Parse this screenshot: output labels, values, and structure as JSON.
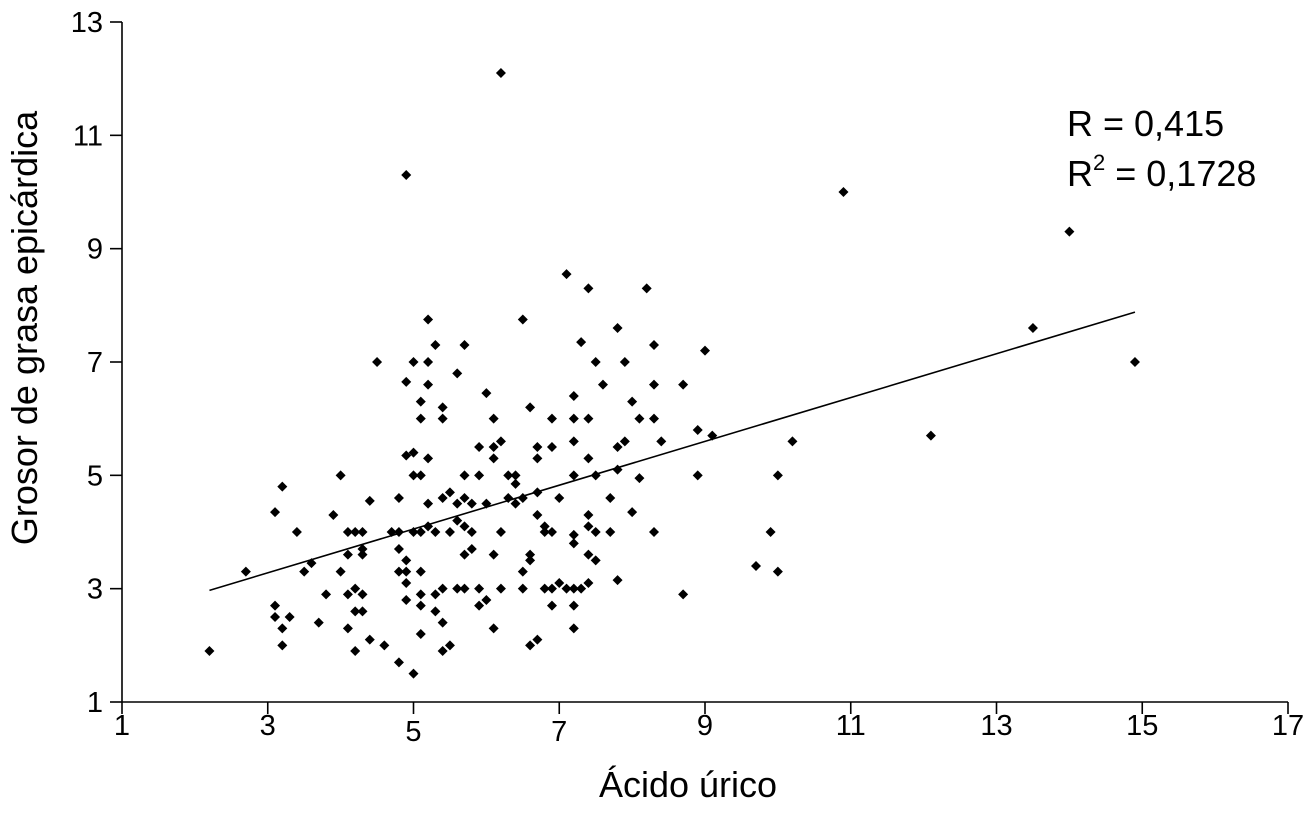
{
  "chart_data": {
    "type": "scatter",
    "title": "",
    "xlabel": "Ácido úrico",
    "ylabel": "Grosor de grasa epicárdica",
    "xlim": [
      1,
      17
    ],
    "ylim": [
      1,
      13
    ],
    "x_ticks": [
      {
        "value": 1,
        "label": "1"
      },
      {
        "value": 3,
        "label": "3"
      },
      {
        "value": 5,
        "label": "5"
      },
      {
        "value": 7,
        "label": "7"
      },
      {
        "value": 9,
        "label": "9"
      },
      {
        "value": 11,
        "label": "11"
      },
      {
        "value": 13,
        "label": "13"
      },
      {
        "value": 15,
        "label": "15"
      },
      {
        "value": 17,
        "label": "17"
      }
    ],
    "y_ticks": [
      {
        "value": 1,
        "label": "1"
      },
      {
        "value": 3,
        "label": "3"
      },
      {
        "value": 5,
        "label": "5"
      },
      {
        "value": 7,
        "label": "7"
      },
      {
        "value": 9,
        "label": "9"
      },
      {
        "value": 11,
        "label": "11"
      },
      {
        "value": 13,
        "label": "13"
      }
    ],
    "grid": false,
    "annotations": {
      "r_text": "R = 0,415",
      "r2_prefix": "R",
      "r2_exponent": "2",
      "r2_suffix": " = 0,1728"
    },
    "trendline": {
      "x": [
        2.2,
        14.9
      ],
      "y": [
        2.97,
        7.88
      ]
    },
    "series": [
      {
        "color": "#000000",
        "points": [
          [
            2.2,
            1.9
          ],
          [
            2.7,
            3.3
          ],
          [
            3.1,
            4.35
          ],
          [
            3.2,
            4.8
          ],
          [
            3.4,
            4.0
          ],
          [
            3.1,
            2.7
          ],
          [
            3.1,
            2.5
          ],
          [
            3.2,
            2.3
          ],
          [
            3.3,
            2.5
          ],
          [
            3.2,
            2.0
          ],
          [
            3.5,
            3.3
          ],
          [
            3.6,
            3.45
          ],
          [
            3.7,
            2.4
          ],
          [
            3.8,
            2.9
          ],
          [
            3.9,
            4.3
          ],
          [
            4.0,
            5.0
          ],
          [
            4.0,
            3.3
          ],
          [
            4.1,
            3.6
          ],
          [
            4.1,
            2.9
          ],
          [
            4.1,
            2.3
          ],
          [
            4.2,
            1.9
          ],
          [
            4.2,
            2.6
          ],
          [
            4.2,
            3.0
          ],
          [
            4.3,
            2.9
          ],
          [
            4.3,
            2.6
          ],
          [
            4.3,
            3.6
          ],
          [
            4.3,
            3.7
          ],
          [
            4.3,
            4.0
          ],
          [
            4.2,
            4.0
          ],
          [
            4.1,
            4.0
          ],
          [
            4.4,
            4.55
          ],
          [
            4.5,
            7.0
          ],
          [
            4.4,
            2.1
          ],
          [
            4.6,
            2.0
          ],
          [
            4.7,
            4.0
          ],
          [
            4.8,
            4.0
          ],
          [
            4.8,
            4.6
          ],
          [
            4.8,
            3.7
          ],
          [
            4.8,
            3.3
          ],
          [
            4.8,
            1.7
          ],
          [
            4.9,
            10.3
          ],
          [
            4.9,
            6.65
          ],
          [
            4.9,
            5.35
          ],
          [
            4.9,
            3.5
          ],
          [
            4.9,
            3.3
          ],
          [
            4.9,
            3.1
          ],
          [
            4.9,
            2.8
          ],
          [
            5.0,
            1.5
          ],
          [
            5.0,
            7.0
          ],
          [
            5.0,
            5.4
          ],
          [
            5.0,
            5.0
          ],
          [
            5.0,
            4.0
          ],
          [
            5.1,
            6.0
          ],
          [
            5.1,
            6.3
          ],
          [
            5.1,
            5.0
          ],
          [
            5.1,
            4.0
          ],
          [
            5.1,
            3.3
          ],
          [
            5.1,
            2.9
          ],
          [
            5.1,
            2.7
          ],
          [
            5.1,
            2.2
          ],
          [
            5.2,
            7.75
          ],
          [
            5.2,
            7.0
          ],
          [
            5.2,
            6.6
          ],
          [
            5.2,
            5.3
          ],
          [
            5.2,
            4.5
          ],
          [
            5.2,
            4.1
          ],
          [
            5.3,
            7.3
          ],
          [
            5.3,
            4.0
          ],
          [
            5.3,
            2.9
          ],
          [
            5.3,
            2.6
          ],
          [
            5.4,
            6.2
          ],
          [
            5.4,
            6.0
          ],
          [
            5.4,
            4.6
          ],
          [
            5.4,
            3.0
          ],
          [
            5.4,
            2.4
          ],
          [
            5.4,
            1.9
          ],
          [
            5.5,
            4.7
          ],
          [
            5.5,
            4.0
          ],
          [
            5.5,
            2.0
          ],
          [
            5.6,
            6.8
          ],
          [
            5.6,
            4.5
          ],
          [
            5.6,
            4.2
          ],
          [
            5.6,
            3.0
          ],
          [
            5.7,
            7.3
          ],
          [
            5.7,
            5.0
          ],
          [
            5.7,
            4.6
          ],
          [
            5.7,
            4.1
          ],
          [
            5.7,
            3.6
          ],
          [
            5.7,
            3.0
          ],
          [
            5.8,
            4.5
          ],
          [
            5.8,
            4.0
          ],
          [
            5.8,
            3.7
          ],
          [
            5.9,
            5.5
          ],
          [
            5.9,
            5.0
          ],
          [
            5.9,
            3.0
          ],
          [
            5.9,
            2.7
          ],
          [
            6.0,
            6.45
          ],
          [
            6.0,
            4.5
          ],
          [
            6.0,
            2.8
          ],
          [
            6.1,
            6.0
          ],
          [
            6.1,
            5.5
          ],
          [
            6.1,
            5.3
          ],
          [
            6.1,
            3.6
          ],
          [
            6.1,
            2.3
          ],
          [
            6.2,
            12.1
          ],
          [
            6.2,
            5.6
          ],
          [
            6.2,
            4.0
          ],
          [
            6.2,
            3.0
          ],
          [
            6.3,
            5.0
          ],
          [
            6.3,
            4.6
          ],
          [
            6.4,
            5.0
          ],
          [
            6.4,
            4.85
          ],
          [
            6.4,
            4.5
          ],
          [
            6.5,
            7.75
          ],
          [
            6.5,
            4.6
          ],
          [
            6.5,
            3.3
          ],
          [
            6.5,
            3.0
          ],
          [
            6.6,
            6.2
          ],
          [
            6.6,
            3.6
          ],
          [
            6.6,
            3.5
          ],
          [
            6.6,
            2.0
          ],
          [
            6.7,
            5.5
          ],
          [
            6.7,
            5.3
          ],
          [
            6.7,
            4.7
          ],
          [
            6.7,
            4.3
          ],
          [
            6.7,
            2.1
          ],
          [
            6.8,
            4.1
          ],
          [
            6.8,
            4.0
          ],
          [
            6.8,
            3.0
          ],
          [
            6.9,
            6.0
          ],
          [
            6.9,
            5.5
          ],
          [
            6.9,
            4.0
          ],
          [
            6.9,
            3.0
          ],
          [
            6.9,
            2.7
          ],
          [
            7.0,
            3.1
          ],
          [
            7.0,
            4.6
          ],
          [
            7.1,
            8.55
          ],
          [
            7.1,
            3.0
          ],
          [
            7.2,
            6.4
          ],
          [
            7.2,
            6.0
          ],
          [
            7.2,
            5.6
          ],
          [
            7.2,
            5.0
          ],
          [
            7.2,
            3.95
          ],
          [
            7.2,
            3.8
          ],
          [
            7.2,
            3.0
          ],
          [
            7.2,
            2.7
          ],
          [
            7.2,
            2.3
          ],
          [
            7.3,
            7.35
          ],
          [
            7.3,
            3.0
          ],
          [
            7.4,
            8.3
          ],
          [
            7.4,
            6.0
          ],
          [
            7.4,
            5.3
          ],
          [
            7.4,
            4.3
          ],
          [
            7.4,
            4.1
          ],
          [
            7.4,
            3.6
          ],
          [
            7.4,
            3.1
          ],
          [
            7.5,
            7.0
          ],
          [
            7.5,
            5.0
          ],
          [
            7.5,
            4.0
          ],
          [
            7.5,
            3.5
          ],
          [
            7.6,
            6.6
          ],
          [
            7.7,
            4.6
          ],
          [
            7.7,
            4.0
          ],
          [
            7.8,
            7.6
          ],
          [
            7.8,
            5.5
          ],
          [
            7.8,
            5.1
          ],
          [
            7.8,
            3.15
          ],
          [
            7.9,
            7.0
          ],
          [
            7.9,
            5.6
          ],
          [
            8.0,
            6.3
          ],
          [
            8.0,
            4.35
          ],
          [
            8.1,
            6.0
          ],
          [
            8.1,
            4.95
          ],
          [
            8.2,
            8.3
          ],
          [
            8.3,
            7.3
          ],
          [
            8.3,
            6.6
          ],
          [
            8.3,
            6.0
          ],
          [
            8.3,
            4.0
          ],
          [
            8.4,
            5.6
          ],
          [
            8.7,
            6.6
          ],
          [
            8.7,
            2.9
          ],
          [
            8.9,
            5.8
          ],
          [
            8.9,
            5.0
          ],
          [
            9.0,
            7.2
          ],
          [
            9.1,
            5.7
          ],
          [
            9.7,
            3.4
          ],
          [
            9.9,
            4.0
          ],
          [
            10.0,
            5.0
          ],
          [
            10.0,
            3.3
          ],
          [
            10.2,
            5.6
          ],
          [
            10.9,
            10.0
          ],
          [
            12.1,
            5.7
          ],
          [
            13.5,
            7.6
          ],
          [
            14.0,
            9.3
          ],
          [
            14.9,
            7.0
          ]
        ]
      }
    ]
  }
}
